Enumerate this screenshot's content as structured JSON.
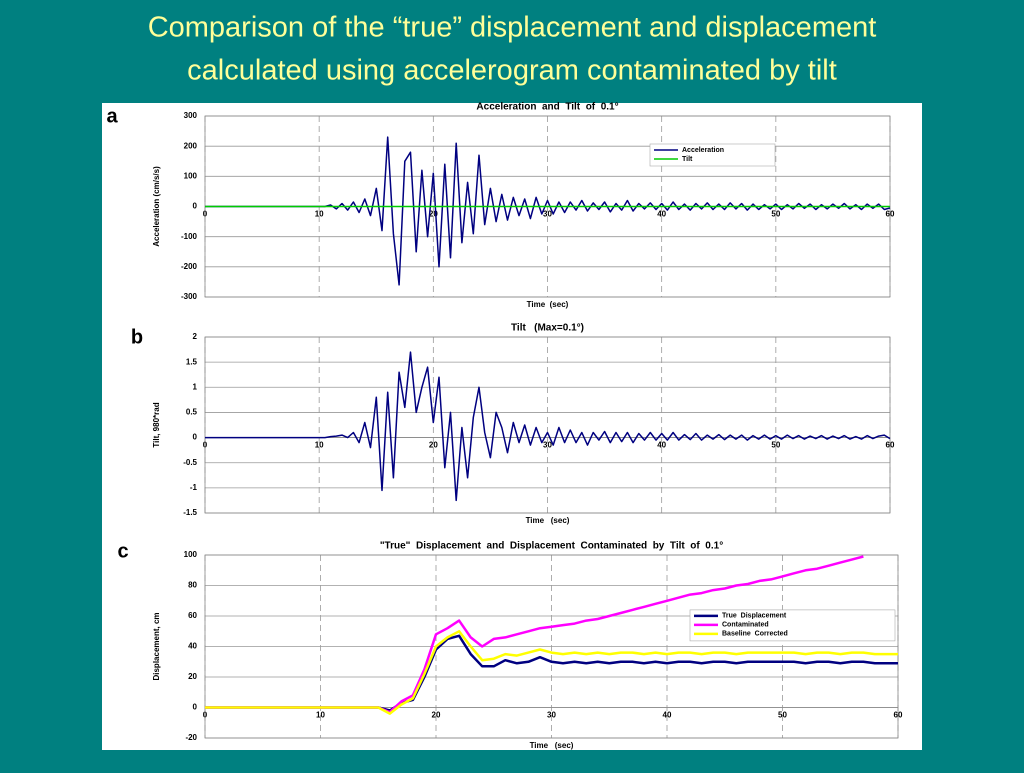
{
  "slide_title": [
    "Comparison of the “true” displacement and displacement",
    "calculated using accelerogram contaminated by tilt"
  ],
  "chart_data": [
    {
      "type": "line",
      "panel": "a",
      "title": "Acceleration  and  Tilt  of  0.1°",
      "x_label": "Time  (sec)",
      "y_label": "Acceleration (cm/s/s)",
      "xlim": [
        0,
        60
      ],
      "xticks": [
        0,
        10,
        20,
        30,
        40,
        50,
        60
      ],
      "ylim": [
        -300,
        300
      ],
      "yticks": [
        -300,
        -200,
        -100,
        0,
        100,
        200,
        300
      ],
      "grid": true,
      "legend": "upper right",
      "series": [
        {
          "name": "Acceleration",
          "color": "#000080",
          "x": [
            0,
            0.5,
            1,
            1.5,
            2,
            2.5,
            3,
            3.5,
            4,
            4.5,
            5,
            5.5,
            6,
            6.5,
            7,
            7.5,
            8,
            8.5,
            9,
            9.5,
            10,
            10.5,
            11,
            11.5,
            12,
            12.5,
            13,
            13.5,
            14,
            14.5,
            15,
            15.5,
            16,
            16.5,
            17,
            17.5,
            18,
            18.5,
            19,
            19.5,
            20,
            20.5,
            21,
            21.5,
            22,
            22.5,
            23,
            23.5,
            24,
            24.5,
            25,
            25.5,
            26,
            26.5,
            27,
            27.5,
            28,
            28.5,
            29,
            29.5,
            30,
            30.5,
            31,
            31.5,
            32,
            32.5,
            33,
            33.5,
            34,
            34.5,
            35,
            35.5,
            36,
            36.5,
            37,
            37.5,
            38,
            38.5,
            39,
            39.5,
            40,
            40.5,
            41,
            41.5,
            42,
            42.5,
            43,
            43.5,
            44,
            44.5,
            45,
            45.5,
            46,
            46.5,
            47,
            47.5,
            48,
            48.5,
            49,
            49.5,
            50,
            50.5,
            51,
            51.5,
            52,
            52.5,
            53,
            53.5,
            54,
            54.5,
            55,
            55.5,
            56,
            56.5,
            57,
            57.5,
            58,
            58.5,
            59,
            59.5,
            60
          ],
          "values": [
            0,
            0,
            0,
            0,
            0,
            0,
            0,
            0,
            0,
            0,
            0,
            0,
            0,
            0,
            0,
            0,
            0,
            0,
            0,
            0,
            0,
            0,
            5,
            -8,
            10,
            -12,
            15,
            -20,
            25,
            -30,
            60,
            -80,
            230,
            -90,
            -260,
            150,
            180,
            -150,
            120,
            -100,
            110,
            -200,
            140,
            -170,
            210,
            -120,
            80,
            -90,
            170,
            -60,
            60,
            -50,
            40,
            -45,
            30,
            -30,
            25,
            -40,
            30,
            -25,
            20,
            -25,
            15,
            -20,
            15,
            -12,
            20,
            -15,
            12,
            -10,
            15,
            -18,
            10,
            -12,
            20,
            -15,
            10,
            -8,
            12,
            -10,
            10,
            -12,
            15,
            -10,
            8,
            -12,
            10,
            -8,
            12,
            -10,
            8,
            -10,
            12,
            -8,
            10,
            -12,
            8,
            -10,
            6,
            -8,
            8,
            -10,
            6,
            -8,
            10,
            -6,
            8,
            -10,
            6,
            -8,
            8,
            -6,
            10,
            -8,
            6,
            -10,
            8,
            -6,
            8,
            -10,
            -5
          ]
        },
        {
          "name": "Tilt",
          "color": "#00cc00",
          "x": [
            0,
            60
          ],
          "values": [
            0,
            0
          ]
        }
      ]
    },
    {
      "type": "line",
      "panel": "b",
      "title": "Tilt   (Max=0.1°)",
      "x_label": "Time   (sec)",
      "y_label": "Tilt, 980*rad",
      "xlim": [
        0,
        60
      ],
      "xticks": [
        0,
        10,
        20,
        30,
        40,
        50,
        60
      ],
      "ylim": [
        -1.5,
        2
      ],
      "yticks": [
        -1.5,
        -1,
        -0.5,
        0,
        0.5,
        1,
        1.5,
        2
      ],
      "grid": true,
      "series": [
        {
          "color": "#000080",
          "x": [
            0,
            0.5,
            1,
            1.5,
            2,
            2.5,
            3,
            3.5,
            4,
            4.5,
            5,
            5.5,
            6,
            6.5,
            7,
            7.5,
            8,
            8.5,
            9,
            9.5,
            10,
            10.5,
            11,
            11.5,
            12,
            12.5,
            13,
            13.5,
            14,
            14.5,
            15,
            15.5,
            16,
            16.5,
            17,
            17.5,
            18,
            18.5,
            19,
            19.5,
            20,
            20.5,
            21,
            21.5,
            22,
            22.5,
            23,
            23.5,
            24,
            24.5,
            25,
            25.5,
            26,
            26.5,
            27,
            27.5,
            28,
            28.5,
            29,
            29.5,
            30,
            30.5,
            31,
            31.5,
            32,
            32.5,
            33,
            33.5,
            34,
            34.5,
            35,
            35.5,
            36,
            36.5,
            37,
            37.5,
            38,
            38.5,
            39,
            39.5,
            40,
            40.5,
            41,
            41.5,
            42,
            42.5,
            43,
            43.5,
            44,
            44.5,
            45,
            45.5,
            46,
            46.5,
            47,
            47.5,
            48,
            48.5,
            49,
            49.5,
            50,
            50.5,
            51,
            51.5,
            52,
            52.5,
            53,
            53.5,
            54,
            54.5,
            55,
            55.5,
            56,
            56.5,
            57,
            57.5,
            58,
            58.5,
            59,
            59.5,
            60
          ],
          "values": [
            0,
            0,
            0,
            0,
            0,
            0,
            0,
            0,
            0,
            0,
            0,
            0,
            0,
            0,
            0,
            0,
            0,
            0,
            0,
            0,
            0,
            0,
            0.02,
            0.03,
            0.05,
            0,
            0.1,
            -0.1,
            0.3,
            -0.2,
            0.8,
            -1.05,
            0.9,
            -0.8,
            1.3,
            0.6,
            1.7,
            0.5,
            1.0,
            1.4,
            0.3,
            1.2,
            -0.6,
            0.5,
            -1.25,
            0.2,
            -0.8,
            0.4,
            1.0,
            0.1,
            -0.4,
            0.5,
            0.2,
            -0.3,
            0.3,
            -0.1,
            0.25,
            -0.15,
            0.2,
            -0.1,
            0.1,
            -0.15,
            0.2,
            -0.1,
            0.15,
            -0.1,
            0.1,
            -0.15,
            0.1,
            -0.05,
            0.12,
            -0.1,
            0.1,
            -0.08,
            0.1,
            -0.1,
            0.08,
            -0.05,
            0.1,
            -0.05,
            0.08,
            -0.05,
            0.1,
            -0.05,
            0.06,
            -0.04,
            0.08,
            -0.05,
            0.05,
            -0.03,
            0.06,
            -0.04,
            0.05,
            -0.03,
            0.05,
            -0.05,
            0.04,
            -0.03,
            0.05,
            -0.03,
            0.04,
            -0.03,
            0.05,
            -0.02,
            0.04,
            -0.03,
            0.03,
            -0.02,
            0.04,
            -0.03,
            0.03,
            -0.02,
            0.04,
            -0.03,
            0.02,
            -0.03,
            0.04,
            -0.02,
            0.03,
            0.05,
            -0.02
          ]
        }
      ]
    },
    {
      "type": "line",
      "panel": "c",
      "title": "\"True\"  Displacement  and  Displacement  Contaminated  by  Tilt  of  0.1°",
      "x_label": "Time   (sec)",
      "y_label": "Displacement, cm",
      "xlim": [
        0,
        60
      ],
      "xticks": [
        0,
        10,
        20,
        30,
        40,
        50,
        60
      ],
      "ylim": [
        -20,
        100
      ],
      "yticks": [
        -20,
        0,
        20,
        40,
        60,
        80,
        100
      ],
      "grid": true,
      "legend": "center right",
      "series": [
        {
          "name": "True  Displacement",
          "color": "#000080",
          "x": [
            0,
            1,
            2,
            3,
            4,
            5,
            6,
            7,
            8,
            9,
            10,
            11,
            12,
            13,
            14,
            15,
            16,
            17,
            18,
            19,
            20,
            21,
            22,
            23,
            24,
            25,
            26,
            27,
            28,
            29,
            30,
            31,
            32,
            33,
            34,
            35,
            36,
            37,
            38,
            39,
            40,
            41,
            42,
            43,
            44,
            45,
            46,
            47,
            48,
            49,
            50,
            51,
            52,
            53,
            54,
            55,
            56,
            57,
            58,
            59,
            60
          ],
          "values": [
            0,
            0,
            0,
            0,
            0,
            0,
            0,
            0,
            0,
            0,
            0,
            0,
            0,
            0,
            0,
            0,
            -2,
            3,
            5,
            20,
            38,
            45,
            47,
            35,
            27,
            27,
            31,
            29,
            30,
            33,
            30,
            29,
            30,
            29,
            30,
            29,
            30,
            30,
            29,
            30,
            29,
            30,
            30,
            29,
            30,
            30,
            29,
            30,
            30,
            30,
            30,
            30,
            29,
            30,
            30,
            29,
            30,
            30,
            29,
            29,
            29
          ]
        },
        {
          "name": "Contaminated",
          "color": "#ff00ff",
          "x": [
            0,
            1,
            2,
            3,
            4,
            5,
            6,
            7,
            8,
            9,
            10,
            11,
            12,
            13,
            14,
            15,
            16,
            17,
            18,
            19,
            20,
            21,
            22,
            23,
            24,
            25,
            26,
            27,
            28,
            29,
            30,
            31,
            32,
            33,
            34,
            35,
            36,
            37,
            38,
            39,
            40,
            41,
            42,
            43,
            44,
            45,
            46,
            47,
            48,
            49,
            50,
            51,
            52,
            53,
            54,
            55,
            56,
            57,
            58,
            59,
            60
          ],
          "values": [
            0,
            0,
            0,
            0,
            0,
            0,
            0,
            0,
            0,
            0,
            0,
            0,
            0,
            0,
            0,
            0,
            -3,
            4,
            8,
            25,
            48,
            52,
            57,
            46,
            40,
            45,
            46,
            48,
            50,
            52,
            53,
            54,
            55,
            57,
            58,
            60,
            62,
            64,
            66,
            68,
            70,
            72,
            74,
            75,
            77,
            78,
            80,
            81,
            83,
            84,
            86,
            88,
            90,
            91,
            93,
            95,
            97,
            99,
            null,
            null,
            null
          ]
        },
        {
          "name": "Baseline  Corrected",
          "color": "#ffff00",
          "x": [
            0,
            1,
            2,
            3,
            4,
            5,
            6,
            7,
            8,
            9,
            10,
            11,
            12,
            13,
            14,
            15,
            16,
            17,
            18,
            19,
            20,
            21,
            22,
            23,
            24,
            25,
            26,
            27,
            28,
            29,
            30,
            31,
            32,
            33,
            34,
            35,
            36,
            37,
            38,
            39,
            40,
            41,
            42,
            43,
            44,
            45,
            46,
            47,
            48,
            49,
            50,
            51,
            52,
            53,
            54,
            55,
            56,
            57,
            58,
            59,
            60
          ],
          "values": [
            0,
            0,
            0,
            0,
            0,
            0,
            0,
            0,
            0,
            0,
            0,
            0,
            0,
            0,
            0,
            0,
            -4,
            2,
            6,
            22,
            40,
            46,
            50,
            40,
            31,
            32,
            35,
            34,
            36,
            38,
            36,
            35,
            36,
            35,
            36,
            35,
            36,
            36,
            35,
            36,
            35,
            36,
            36,
            35,
            36,
            36,
            35,
            36,
            36,
            36,
            36,
            36,
            35,
            36,
            36,
            35,
            36,
            36,
            35,
            35,
            35
          ]
        }
      ]
    }
  ]
}
